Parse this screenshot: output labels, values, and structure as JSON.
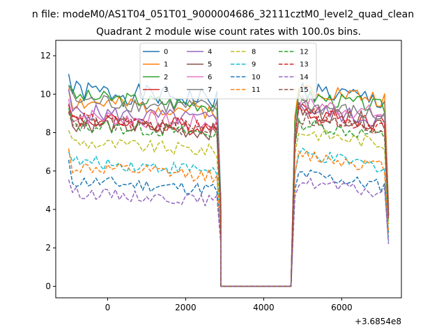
{
  "figure": {
    "suptitle": "n file: modeM0/AS1T04_051T01_9000004686_32111cztM0_level2_quad_clean"
  },
  "chart_data": {
    "type": "line",
    "title": "Quadrant 2 module wise count rates with 100.0s bins.",
    "xlabel": "",
    "ylabel": "",
    "x_offset_label": "+3.6854e8",
    "xlim": [
      -1330,
      7530
    ],
    "ylim": [
      -0.6,
      12.8
    ],
    "xticks": [
      0,
      2000,
      4000,
      6000
    ],
    "xtick_labels": [
      "0",
      "2000",
      "4000",
      "6000"
    ],
    "yticks": [
      0,
      2,
      4,
      6,
      8,
      10,
      12
    ],
    "ytick_labels": [
      "0",
      "2",
      "4",
      "6",
      "8",
      "10",
      "12"
    ],
    "grid": false,
    "legend": {
      "placement": "top-center",
      "columns": 4
    },
    "segments": {
      "first": {
        "x_start": -1000,
        "step": 100,
        "count": 40
      },
      "gap": {
        "x": [
          2900,
          3000,
          3100,
          3200,
          3300,
          3400,
          3500,
          3600,
          3700,
          3800,
          3900,
          4000,
          4100,
          4200,
          4300,
          4400,
          4500,
          4600,
          4700
        ],
        "value": 0
      },
      "second": {
        "x_start": 4800,
        "step": 100,
        "count": 25
      }
    },
    "series": [
      {
        "name": "0",
        "color": "#1f77b4",
        "dash": "solid",
        "first_level": 10.2,
        "second_level": 10.3,
        "amp": 0.55,
        "seed": 1
      },
      {
        "name": "1",
        "color": "#ff7f0e",
        "dash": "solid",
        "first_level": 9.6,
        "second_level": 10.4,
        "amp": 0.45,
        "seed": 2
      },
      {
        "name": "2",
        "color": "#2ca02c",
        "dash": "solid",
        "first_level": 9.9,
        "second_level": 10.0,
        "amp": 0.4,
        "seed": 3
      },
      {
        "name": "3",
        "color": "#d62728",
        "dash": "solid",
        "first_level": 8.7,
        "second_level": 9.2,
        "amp": 0.45,
        "seed": 4
      },
      {
        "name": "4",
        "color": "#9467bd",
        "dash": "solid",
        "first_level": 9.1,
        "second_level": 9.3,
        "amp": 0.45,
        "seed": 5
      },
      {
        "name": "5",
        "color": "#8c564b",
        "dash": "solid",
        "first_level": 8.5,
        "second_level": 9.2,
        "amp": 0.45,
        "seed": 6
      },
      {
        "name": "6",
        "color": "#e377c2",
        "dash": "solid",
        "first_level": 8.9,
        "second_level": 9.6,
        "amp": 0.45,
        "seed": 7
      },
      {
        "name": "7",
        "color": "#7f7f7f",
        "dash": "solid",
        "first_level": 9.7,
        "second_level": 9.5,
        "amp": 0.45,
        "seed": 8
      },
      {
        "name": "8",
        "color": "#bcbd22",
        "dash": "dashed",
        "first_level": 7.5,
        "second_level": 8.1,
        "amp": 0.35,
        "seed": 9
      },
      {
        "name": "9",
        "color": "#17becf",
        "dash": "dashed",
        "first_level": 6.5,
        "second_level": 6.9,
        "amp": 0.35,
        "seed": 10
      },
      {
        "name": "10",
        "color": "#1f77b4",
        "dash": "dashed",
        "first_level": 5.5,
        "second_level": 5.9,
        "amp": 0.35,
        "seed": 11
      },
      {
        "name": "11",
        "color": "#ff7f0e",
        "dash": "dashed",
        "first_level": 6.2,
        "second_level": 6.9,
        "amp": 0.35,
        "seed": 12
      },
      {
        "name": "12",
        "color": "#2ca02c",
        "dash": "dashed",
        "first_level": 8.4,
        "second_level": 8.5,
        "amp": 0.35,
        "seed": 13
      },
      {
        "name": "13",
        "color": "#d62728",
        "dash": "dashed",
        "first_level": 8.7,
        "second_level": 9.0,
        "amp": 0.4,
        "seed": 14
      },
      {
        "name": "14",
        "color": "#9467bd",
        "dash": "dashed",
        "first_level": 4.9,
        "second_level": 5.5,
        "amp": 0.3,
        "seed": 15
      },
      {
        "name": "15",
        "color": "#8c564b",
        "dash": "dashed",
        "first_level": 8.6,
        "second_level": 8.8,
        "amp": 0.4,
        "seed": 16
      }
    ]
  }
}
